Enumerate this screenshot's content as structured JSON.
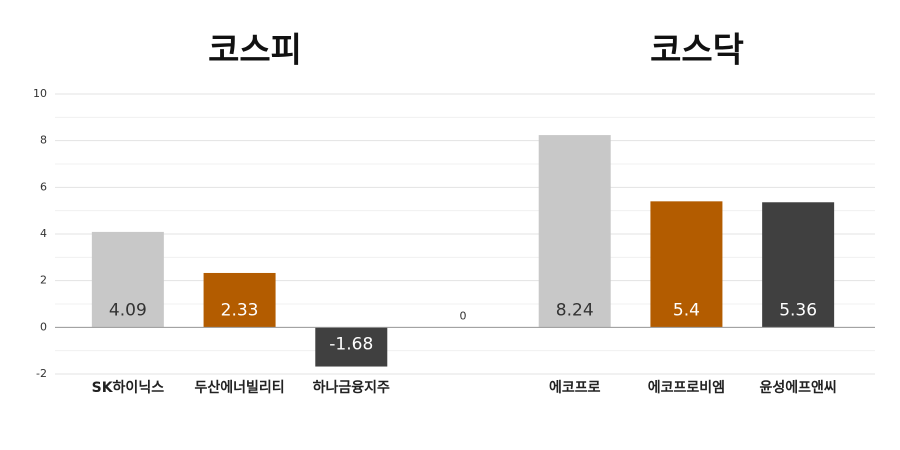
{
  "chart_data": {
    "type": "bar",
    "group_titles": [
      "코스피",
      "코스닥"
    ],
    "categories": [
      "SK하이닉스",
      "두산에너빌리티",
      "하나금융지주",
      null,
      "에코프로",
      "에코프로비엠",
      "윤성에프앤씨"
    ],
    "values": [
      4.09,
      2.33,
      -1.68,
      0,
      8.24,
      5.4,
      5.36
    ],
    "colors": [
      "#c8c8c8",
      "#b35c00",
      "#404040",
      "#c8c8c8",
      "#c8c8c8",
      "#b35c00",
      "#404040"
    ],
    "ylim": [
      -2,
      10
    ],
    "yticks": [
      -2,
      0,
      2,
      4,
      6,
      8,
      10
    ],
    "grid": true
  }
}
